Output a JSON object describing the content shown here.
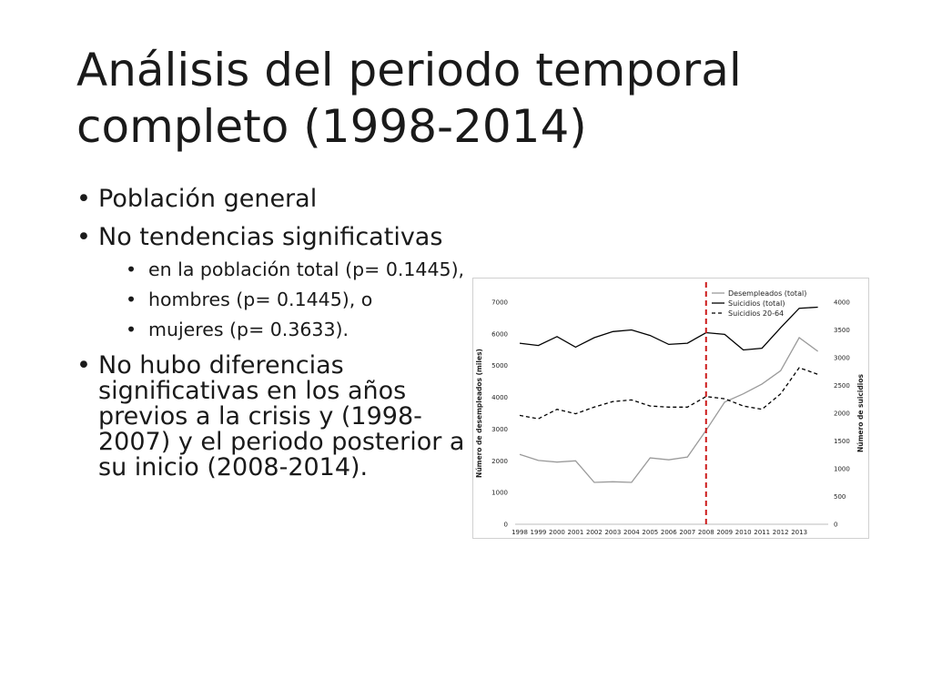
{
  "slide": {
    "title": "Análisis del periodo temporal completo (1998-2014)",
    "bullets": [
      {
        "text": "Población general",
        "sub": []
      },
      {
        "text": "No tendencias significativas",
        "sub": [
          "en la población total (p= 0.1445),",
          "hombres (p= 0.1445), o",
          "mujeres (p= 0.3633)."
        ]
      },
      {
        "text": "No hubo diferencias significativas en los años previos a la crisis y (1998-2007) y el periodo posterior a su inicio (2008-2014).",
        "sub": []
      }
    ]
  },
  "chart_data": {
    "type": "line",
    "title": "",
    "x": [
      "1998",
      "1999",
      "2000",
      "2001",
      "2002",
      "2003",
      "2004",
      "2005",
      "2006",
      "2007",
      "2008",
      "2009",
      "2010",
      "2011",
      "2012",
      "2013",
      "2014"
    ],
    "x_tick_labels": [
      "1998",
      "1999",
      "2000",
      "2001",
      "2002",
      "2003",
      "2004",
      "2005",
      "2006",
      "2007",
      "2008",
      "2009",
      "2010",
      "2011",
      "2012",
      "2013"
    ],
    "ylabel": "Número de desempleados (miles)",
    "y2label": "Número de suicidios",
    "ylim": [
      0,
      7000
    ],
    "y_ticks": [
      0,
      1000,
      2000,
      3000,
      4000,
      5000,
      6000,
      7000
    ],
    "y2lim": [
      0,
      4000
    ],
    "y2_ticks": [
      0,
      500,
      1000,
      1500,
      2000,
      2500,
      3000,
      3500,
      4000
    ],
    "legend_position": "top-right",
    "grid": false,
    "vertical_marker": {
      "x": "2008",
      "color": "#cc1a1a",
      "style": "dashed"
    },
    "series": [
      {
        "name": "Desempleados (total)",
        "axis": "left",
        "color": "#9a9a9a",
        "dash": "solid",
        "values": [
          2200,
          2010,
          1960,
          2000,
          1320,
          1340,
          1320,
          2090,
          2030,
          2120,
          2960,
          3850,
          4110,
          4420,
          4840,
          5880,
          5450
        ]
      },
      {
        "name": "Suicidios (total)",
        "axis": "right",
        "color": "#000000",
        "dash": "solid",
        "values": [
          3260,
          3220,
          3380,
          3190,
          3360,
          3470,
          3500,
          3400,
          3240,
          3260,
          3450,
          3420,
          3140,
          3170,
          3540,
          3890,
          3910
        ]
      },
      {
        "name": "Suicidios 20-64",
        "axis": "right",
        "color": "#000000",
        "dash": "dashed",
        "values": [
          1960,
          1900,
          2070,
          1990,
          2110,
          2210,
          2240,
          2130,
          2110,
          2110,
          2300,
          2260,
          2130,
          2070,
          2350,
          2820,
          2700
        ]
      }
    ]
  }
}
